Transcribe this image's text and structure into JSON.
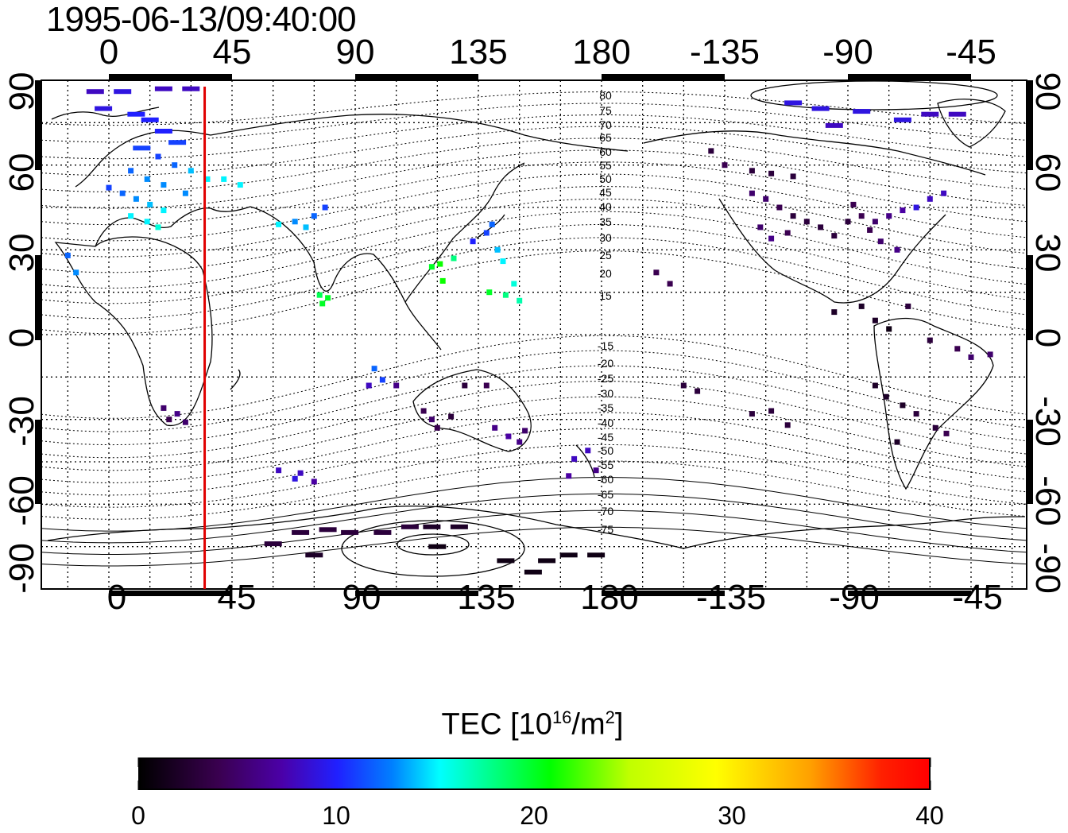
{
  "title": "1995-06-13/09:40:00",
  "lon_ticks": [
    "0",
    "45",
    "90",
    "135",
    "180",
    "-135",
    "-90",
    "-45"
  ],
  "lat_ticks": [
    "90",
    "60",
    "30",
    "0",
    "-30",
    "-60",
    "-90"
  ],
  "contour_labels": [
    "80",
    "75",
    "70",
    "65",
    "60",
    "55",
    "50",
    "45",
    "40",
    "35",
    "30",
    "25",
    "20",
    "15",
    "-15",
    "-20",
    "-25",
    "-30",
    "-35",
    "-40",
    "-45",
    "-50",
    "-55",
    "-60",
    "-65",
    "-70",
    "-75"
  ],
  "colorbar": {
    "title_prefix": "TEC  [10",
    "title_exp1": "16",
    "title_mid": "/m",
    "title_exp2": "2",
    "title_suffix": "]",
    "tick_labels": [
      "0",
      "10",
      "20",
      "30",
      "40"
    ],
    "min": 0,
    "max": 40
  },
  "colors": {
    "terminator": "#e00000",
    "scale": [
      "#000000",
      "#3a0050",
      "#4b00a8",
      "#2020ff",
      "#0080ff",
      "#00ffff",
      "#00ff80",
      "#00ff00",
      "#c0ff00",
      "#ffff00",
      "#ffa000",
      "#ff2000",
      "#ff0000"
    ]
  },
  "terminator_lon": 35,
  "tec_points": [
    {
      "lon": -5,
      "lat": 86,
      "tec": 8
    },
    {
      "lon": 5,
      "lat": 86,
      "tec": 9
    },
    {
      "lon": 20,
      "lat": 87,
      "tec": 8
    },
    {
      "lon": 30,
      "lat": 87,
      "tec": 8
    },
    {
      "lon": -2,
      "lat": 80,
      "tec": 9
    },
    {
      "lon": 10,
      "lat": 78,
      "tec": 10
    },
    {
      "lon": 15,
      "lat": 76,
      "tec": 10
    },
    {
      "lon": 20,
      "lat": 72,
      "tec": 10
    },
    {
      "lon": 25,
      "lat": 68,
      "tec": 11
    },
    {
      "lon": 12,
      "lat": 66,
      "tec": 11
    },
    {
      "lon": 18,
      "lat": 63,
      "tec": 11
    },
    {
      "lon": 24,
      "lat": 60,
      "tec": 12
    },
    {
      "lon": 8,
      "lat": 58,
      "tec": 12
    },
    {
      "lon": 14,
      "lat": 55,
      "tec": 13
    },
    {
      "lon": 20,
      "lat": 53,
      "tec": 13
    },
    {
      "lon": 28,
      "lat": 50,
      "tec": 13
    },
    {
      "lon": 0,
      "lat": 52,
      "tec": 11
    },
    {
      "lon": 5,
      "lat": 50,
      "tec": 12
    },
    {
      "lon": 10,
      "lat": 48,
      "tec": 13
    },
    {
      "lon": 15,
      "lat": 46,
      "tec": 14
    },
    {
      "lon": 20,
      "lat": 44,
      "tec": 15
    },
    {
      "lon": 8,
      "lat": 42,
      "tec": 15
    },
    {
      "lon": 14,
      "lat": 40,
      "tec": 15
    },
    {
      "lon": 18,
      "lat": 38,
      "tec": 16
    },
    {
      "lon": 30,
      "lat": 58,
      "tec": 14
    },
    {
      "lon": 36,
      "lat": 55,
      "tec": 15
    },
    {
      "lon": 42,
      "lat": 55,
      "tec": 15
    },
    {
      "lon": 48,
      "lat": 53,
      "tec": 15
    },
    {
      "lon": -15,
      "lat": 28,
      "tec": 12
    },
    {
      "lon": -12,
      "lat": 22,
      "tec": 13
    },
    {
      "lon": 68,
      "lat": 40,
      "tec": 13
    },
    {
      "lon": 72,
      "lat": 38,
      "tec": 14
    },
    {
      "lon": 75,
      "lat": 42,
      "tec": 12
    },
    {
      "lon": 79,
      "lat": 45,
      "tec": 11
    },
    {
      "lon": 62,
      "lat": 39,
      "tec": 15
    },
    {
      "lon": 77,
      "lat": 14,
      "tec": 19
    },
    {
      "lon": 78,
      "lat": 11,
      "tec": 20
    },
    {
      "lon": 80,
      "lat": 13,
      "tec": 20
    },
    {
      "lon": 118,
      "lat": 24,
      "tec": 20
    },
    {
      "lon": 121,
      "lat": 25,
      "tec": 21
    },
    {
      "lon": 122,
      "lat": 19,
      "tec": 21
    },
    {
      "lon": 126,
      "lat": 27,
      "tec": 18
    },
    {
      "lon": 133,
      "lat": 33,
      "tec": 10
    },
    {
      "lon": 138,
      "lat": 36,
      "tec": 11
    },
    {
      "lon": 140,
      "lat": 39,
      "tec": 12
    },
    {
      "lon": 142,
      "lat": 30,
      "tec": 14
    },
    {
      "lon": 144,
      "lat": 26,
      "tec": 15
    },
    {
      "lon": 145,
      "lat": 14,
      "tec": 18
    },
    {
      "lon": 148,
      "lat": 18,
      "tec": 16
    },
    {
      "lon": 150,
      "lat": 12,
      "tec": 17
    },
    {
      "lon": 139,
      "lat": 15,
      "tec": 20
    },
    {
      "lon": 97,
      "lat": -12,
      "tec": 12
    },
    {
      "lon": 100,
      "lat": -16,
      "tec": 11
    },
    {
      "lon": 95,
      "lat": -18,
      "tec": 8
    },
    {
      "lon": 105,
      "lat": -18,
      "tec": 6
    },
    {
      "lon": 115,
      "lat": -27,
      "tec": 4
    },
    {
      "lon": 118,
      "lat": -30,
      "tec": 5
    },
    {
      "lon": 120,
      "lat": -33,
      "tec": 4
    },
    {
      "lon": 125,
      "lat": -29,
      "tec": 3
    },
    {
      "lon": 130,
      "lat": -18,
      "tec": 3
    },
    {
      "lon": 138,
      "lat": -18,
      "tec": 4
    },
    {
      "lon": 141,
      "lat": -33,
      "tec": 6
    },
    {
      "lon": 146,
      "lat": -36,
      "tec": 7
    },
    {
      "lon": 150,
      "lat": -38,
      "tec": 6
    },
    {
      "lon": 152,
      "lat": -34,
      "tec": 5
    },
    {
      "lon": 20,
      "lat": -26,
      "tec": 5
    },
    {
      "lon": 25,
      "lat": -28,
      "tec": 6
    },
    {
      "lon": 28,
      "lat": -31,
      "tec": 5
    },
    {
      "lon": 22,
      "lat": -30,
      "tec": 4
    },
    {
      "lon": 62,
      "lat": -48,
      "tec": 8
    },
    {
      "lon": 68,
      "lat": -51,
      "tec": 9
    },
    {
      "lon": 70,
      "lat": -49,
      "tec": 8
    },
    {
      "lon": 75,
      "lat": -52,
      "tec": 7
    },
    {
      "lon": 170,
      "lat": -44,
      "tec": 8
    },
    {
      "lon": 175,
      "lat": -41,
      "tec": 8
    },
    {
      "lon": 168,
      "lat": -50,
      "tec": 7
    },
    {
      "lon": 178,
      "lat": -48,
      "tec": 6
    },
    {
      "lon": -160,
      "lat": 22,
      "tec": 4
    },
    {
      "lon": -155,
      "lat": 18,
      "tec": 4
    },
    {
      "lon": -150,
      "lat": -18,
      "tec": 3
    },
    {
      "lon": -145,
      "lat": -20,
      "tec": 3
    },
    {
      "lon": -140,
      "lat": 65,
      "tec": 3
    },
    {
      "lon": -135,
      "lat": 60,
      "tec": 4
    },
    {
      "lon": -125,
      "lat": 58,
      "tec": 3
    },
    {
      "lon": -118,
      "lat": 57,
      "tec": 3
    },
    {
      "lon": -110,
      "lat": 56,
      "tec": 3
    },
    {
      "lon": -125,
      "lat": 50,
      "tec": 5
    },
    {
      "lon": -120,
      "lat": 48,
      "tec": 5
    },
    {
      "lon": -115,
      "lat": 45,
      "tec": 4
    },
    {
      "lon": -110,
      "lat": 42,
      "tec": 3
    },
    {
      "lon": -122,
      "lat": 38,
      "tec": 5
    },
    {
      "lon": -118,
      "lat": 34,
      "tec": 6
    },
    {
      "lon": -112,
      "lat": 36,
      "tec": 4
    },
    {
      "lon": -105,
      "lat": 40,
      "tec": 3
    },
    {
      "lon": -100,
      "lat": 38,
      "tec": 3
    },
    {
      "lon": -95,
      "lat": 35,
      "tec": 3
    },
    {
      "lon": -90,
      "lat": 40,
      "tec": 3
    },
    {
      "lon": -85,
      "lat": 42,
      "tec": 4
    },
    {
      "lon": -80,
      "lat": 40,
      "tec": 5
    },
    {
      "lon": -75,
      "lat": 42,
      "tec": 6
    },
    {
      "lon": -70,
      "lat": 44,
      "tec": 7
    },
    {
      "lon": -88,
      "lat": 46,
      "tec": 4
    },
    {
      "lon": -82,
      "lat": 37,
      "tec": 4
    },
    {
      "lon": -78,
      "lat": 33,
      "tec": 5
    },
    {
      "lon": -72,
      "lat": 30,
      "tec": 6
    },
    {
      "lon": -65,
      "lat": 45,
      "tec": 9
    },
    {
      "lon": -60,
      "lat": 48,
      "tec": 8
    },
    {
      "lon": -55,
      "lat": 50,
      "tec": 8
    },
    {
      "lon": -110,
      "lat": 82,
      "tec": 9
    },
    {
      "lon": -100,
      "lat": 80,
      "tec": 9
    },
    {
      "lon": -85,
      "lat": 79,
      "tec": 9
    },
    {
      "lon": -70,
      "lat": 76,
      "tec": 9
    },
    {
      "lon": -60,
      "lat": 78,
      "tec": 8
    },
    {
      "lon": -50,
      "lat": 78,
      "tec": 8
    },
    {
      "lon": -95,
      "lat": 74,
      "tec": 8
    },
    {
      "lon": -95,
      "lat": 8,
      "tec": 2
    },
    {
      "lon": -85,
      "lat": 10,
      "tec": 2
    },
    {
      "lon": -80,
      "lat": 5,
      "tec": 2
    },
    {
      "lon": -75,
      "lat": 2,
      "tec": 1
    },
    {
      "lon": -68,
      "lat": 10,
      "tec": 3
    },
    {
      "lon": -60,
      "lat": -2,
      "tec": 3
    },
    {
      "lon": -50,
      "lat": -5,
      "tec": 4
    },
    {
      "lon": -45,
      "lat": -8,
      "tec": 5
    },
    {
      "lon": -38,
      "lat": -7,
      "tec": 5
    },
    {
      "lon": -80,
      "lat": -18,
      "tec": 2
    },
    {
      "lon": -76,
      "lat": -22,
      "tec": 2
    },
    {
      "lon": -70,
      "lat": -25,
      "tec": 2
    },
    {
      "lon": -65,
      "lat": -28,
      "tec": 3
    },
    {
      "lon": -58,
      "lat": -33,
      "tec": 3
    },
    {
      "lon": -54,
      "lat": -35,
      "tec": 4
    },
    {
      "lon": -72,
      "lat": -38,
      "tec": 2
    },
    {
      "lon": -125,
      "lat": -28,
      "tec": 3
    },
    {
      "lon": -118,
      "lat": -27,
      "tec": 3
    },
    {
      "lon": -112,
      "lat": -32,
      "tec": 3
    },
    {
      "lon": 70,
      "lat": -70,
      "tec": 3
    },
    {
      "lon": 80,
      "lat": -69,
      "tec": 3
    },
    {
      "lon": 88,
      "lat": -70,
      "tec": 3
    },
    {
      "lon": 100,
      "lat": -70,
      "tec": 3
    },
    {
      "lon": 110,
      "lat": -68,
      "tec": 3
    },
    {
      "lon": 118,
      "lat": -68,
      "tec": 2
    },
    {
      "lon": 128,
      "lat": -68,
      "tec": 2
    },
    {
      "lon": 60,
      "lat": -74,
      "tec": 3
    },
    {
      "lon": 75,
      "lat": -78,
      "tec": 2
    },
    {
      "lon": 120,
      "lat": -75,
      "tec": 1
    },
    {
      "lon": 145,
      "lat": -80,
      "tec": 1
    },
    {
      "lon": 160,
      "lat": -80,
      "tec": 1
    },
    {
      "lon": 155,
      "lat": -84,
      "tec": 1
    },
    {
      "lon": 168,
      "lat": -78,
      "tec": 1
    },
    {
      "lon": 178,
      "lat": -78,
      "tec": 1
    }
  ]
}
